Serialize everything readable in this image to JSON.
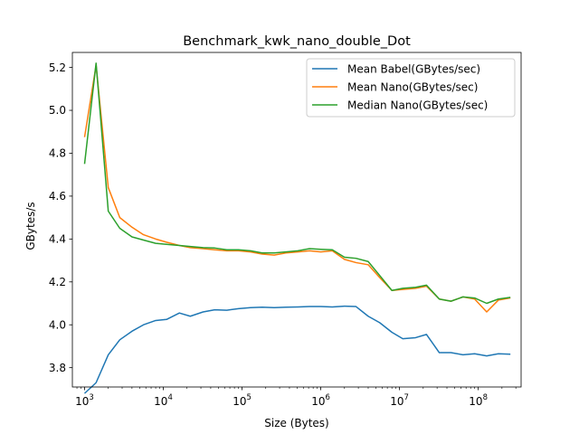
{
  "chart_data": {
    "type": "line",
    "title": "Benchmark_kwk_nano_double_Dot",
    "xlabel": "Size (Bytes)",
    "ylabel": "GBytes/s",
    "xscale": "log",
    "xlim": [
      700,
      350000000
    ],
    "ylim": [
      3.71,
      5.27
    ],
    "grid": false,
    "legend_position": "top-right",
    "x_ticks": [
      {
        "value": 1000,
        "base": "10",
        "exp": "3"
      },
      {
        "value": 10000,
        "base": "10",
        "exp": "4"
      },
      {
        "value": 100000,
        "base": "10",
        "exp": "5"
      },
      {
        "value": 1000000,
        "base": "10",
        "exp": "6"
      },
      {
        "value": 10000000,
        "base": "10",
        "exp": "7"
      },
      {
        "value": 100000000,
        "base": "10",
        "exp": "8"
      }
    ],
    "y_ticks": [
      "3.8",
      "4.0",
      "4.2",
      "4.4",
      "4.6",
      "4.8",
      "5.0",
      "5.2"
    ],
    "x": [
      1000,
      1400,
      2000,
      2800,
      4000,
      5600,
      8000,
      11000,
      16000,
      22000,
      32000,
      45000,
      64000,
      90000,
      128000,
      180000,
      256000,
      360000,
      512000,
      720000,
      1000000,
      1400000,
      2000000,
      2800000,
      4000000,
      5600000,
      8000000,
      11000000,
      16000000,
      22000000,
      32000000,
      45000000,
      64000000,
      90000000,
      128000000,
      180000000,
      256000000
    ],
    "series": [
      {
        "name": "Mean Babel(GBytes/sec)",
        "color": "#1f77b4",
        "values": [
          3.68,
          3.73,
          3.86,
          3.93,
          3.97,
          4.0,
          4.02,
          4.025,
          4.055,
          4.04,
          4.06,
          4.07,
          4.068,
          4.075,
          4.08,
          4.082,
          4.08,
          4.082,
          4.083,
          4.085,
          4.085,
          4.083,
          4.087,
          4.085,
          4.04,
          4.01,
          3.965,
          3.935,
          3.94,
          3.955,
          3.87,
          3.87,
          3.86,
          3.865,
          3.855,
          3.865,
          3.863
        ]
      },
      {
        "name": "Mean Nano(GBytes/sec)",
        "color": "#ff7f0e",
        "values": [
          4.875,
          5.21,
          4.64,
          4.5,
          4.455,
          4.42,
          4.4,
          4.385,
          4.37,
          4.36,
          4.355,
          4.35,
          4.345,
          4.345,
          4.34,
          4.33,
          4.325,
          4.335,
          4.34,
          4.345,
          4.34,
          4.345,
          4.305,
          4.29,
          4.28,
          4.22,
          4.16,
          4.165,
          4.17,
          4.18,
          4.12,
          4.11,
          4.13,
          4.12,
          4.06,
          4.115,
          4.125
        ]
      },
      {
        "name": "Median Nano(GBytes/sec)",
        "color": "#2ca02c",
        "values": [
          4.75,
          5.22,
          4.53,
          4.45,
          4.41,
          4.395,
          4.38,
          4.375,
          4.37,
          4.365,
          4.36,
          4.358,
          4.35,
          4.35,
          4.345,
          4.335,
          4.335,
          4.34,
          4.345,
          4.355,
          4.352,
          4.35,
          4.315,
          4.31,
          4.295,
          4.23,
          4.16,
          4.17,
          4.175,
          4.185,
          4.12,
          4.11,
          4.13,
          4.125,
          4.1,
          4.12,
          4.128
        ]
      }
    ]
  }
}
